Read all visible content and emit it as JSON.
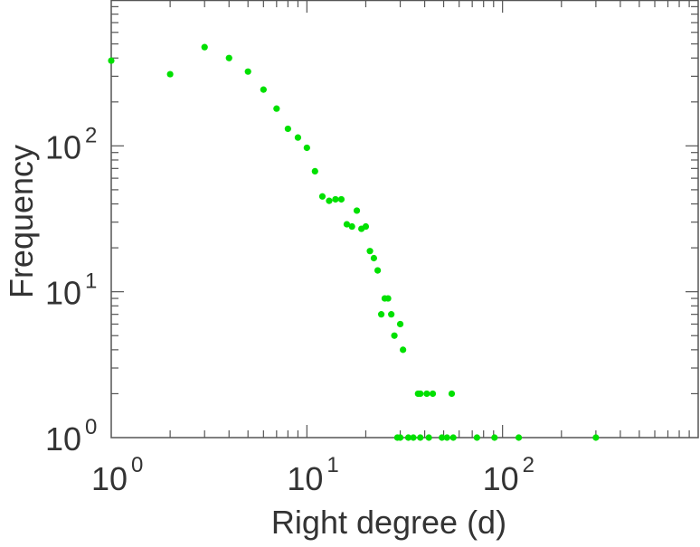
{
  "chart_data": {
    "type": "scatter",
    "title": "",
    "xlabel": "Right degree (d)",
    "ylabel": "Frequency",
    "xscale": "log",
    "yscale": "log",
    "xlim": [
      1,
      1000
    ],
    "ylim": [
      1,
      1000
    ],
    "grid": false,
    "marker_color": "#00e000",
    "x_ticks": [
      {
        "base": "10",
        "exp": "0",
        "value": 1
      },
      {
        "base": "10",
        "exp": "1",
        "value": 10
      },
      {
        "base": "10",
        "exp": "2",
        "value": 100
      }
    ],
    "y_ticks": [
      {
        "base": "10",
        "exp": "0",
        "value": 1
      },
      {
        "base": "10",
        "exp": "1",
        "value": 10
      },
      {
        "base": "10",
        "exp": "2",
        "value": 100
      }
    ],
    "points": [
      [
        1,
        384
      ],
      [
        2,
        310
      ],
      [
        3,
        475
      ],
      [
        4,
        400
      ],
      [
        5,
        323
      ],
      [
        6,
        243
      ],
      [
        7,
        180
      ],
      [
        8,
        131
      ],
      [
        9,
        114
      ],
      [
        10,
        97
      ],
      [
        11,
        67
      ],
      [
        12,
        45
      ],
      [
        13,
        42
      ],
      [
        14,
        43
      ],
      [
        15,
        43
      ],
      [
        16,
        29
      ],
      [
        17,
        28
      ],
      [
        18,
        36
      ],
      [
        19,
        27
      ],
      [
        20,
        28
      ],
      [
        21,
        19
      ],
      [
        22,
        17
      ],
      [
        23,
        14
      ],
      [
        24,
        7
      ],
      [
        25,
        9
      ],
      [
        26,
        9
      ],
      [
        27,
        7
      ],
      [
        28,
        5
      ],
      [
        30,
        6
      ],
      [
        31,
        4
      ],
      [
        37,
        2
      ],
      [
        38,
        2
      ],
      [
        41,
        2
      ],
      [
        44,
        2
      ],
      [
        55,
        2
      ],
      [
        29,
        1
      ],
      [
        30,
        1
      ],
      [
        33,
        1
      ],
      [
        35,
        1
      ],
      [
        38,
        1
      ],
      [
        42,
        1
      ],
      [
        49,
        1
      ],
      [
        52,
        1
      ],
      [
        56,
        1
      ],
      [
        74,
        1
      ],
      [
        91,
        1
      ],
      [
        121,
        1
      ],
      [
        300,
        1
      ]
    ]
  }
}
